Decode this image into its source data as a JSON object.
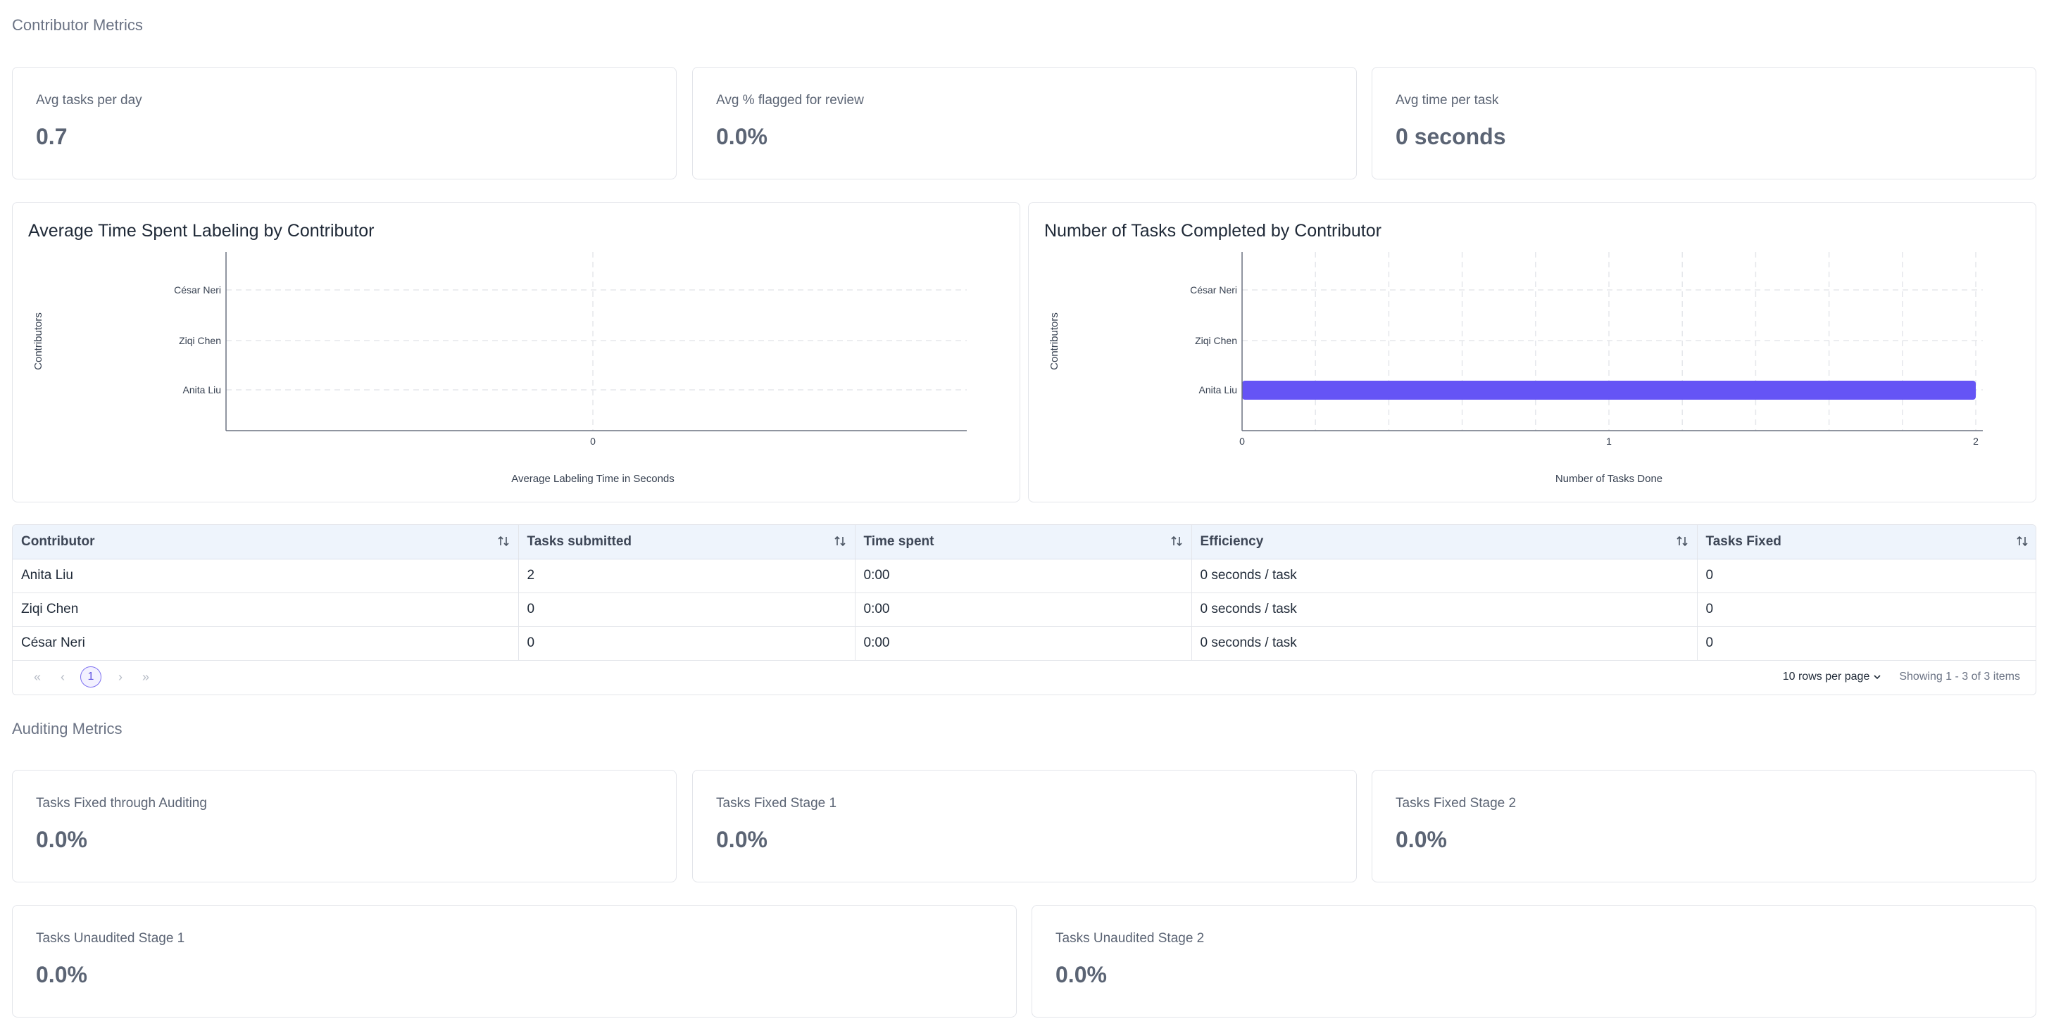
{
  "contributor_section": {
    "title": "Contributor Metrics",
    "stats": [
      {
        "label": "Avg tasks per day",
        "value": "0.7"
      },
      {
        "label": "Avg % flagged for review",
        "value": "0.0%"
      },
      {
        "label": "Avg time per task",
        "value": "0 seconds"
      }
    ]
  },
  "chart_data": [
    {
      "type": "bar",
      "orientation": "horizontal",
      "title": "Average Time Spent Labeling by Contributor",
      "categories": [
        "César Neri",
        "Ziqi Chen",
        "Anita Liu"
      ],
      "values": [
        0,
        0,
        0
      ],
      "xlabel": "Average Labeling Time in Seconds",
      "ylabel": "Contributors",
      "x_ticks": [
        "0"
      ],
      "grid": true,
      "color": "#6554f5"
    },
    {
      "type": "bar",
      "orientation": "horizontal",
      "title": "Number of Tasks Completed by Contributor",
      "categories": [
        "César Neri",
        "Ziqi Chen",
        "Anita Liu"
      ],
      "values": [
        0,
        0,
        2
      ],
      "xlabel": "Number of Tasks Done",
      "ylabel": "Contributors",
      "xlim": [
        0,
        2
      ],
      "x_ticks": [
        "0",
        "1",
        "2"
      ],
      "grid": true,
      "color": "#6554f5"
    }
  ],
  "table": {
    "columns": [
      "Contributor",
      "Tasks submitted",
      "Time spent",
      "Efficiency",
      "Tasks Fixed"
    ],
    "rows": [
      [
        "Anita Liu",
        "2",
        "0:00",
        "0 seconds / task",
        "0"
      ],
      [
        "Ziqi Chen",
        "0",
        "0:00",
        "0 seconds / task",
        "0"
      ],
      [
        "César Neri",
        "0",
        "0:00",
        "0 seconds / task",
        "0"
      ]
    ],
    "pagination": {
      "current_page": "1",
      "rows_per_page": "10 rows per page",
      "showing": "Showing 1 - 3 of 3 items"
    }
  },
  "auditing_section": {
    "title": "Auditing Metrics",
    "stats": [
      {
        "label": "Tasks Fixed through Auditing",
        "value": "0.0%"
      },
      {
        "label": "Tasks Fixed Stage 1",
        "value": "0.0%"
      },
      {
        "label": "Tasks Fixed Stage 2",
        "value": "0.0%"
      },
      {
        "label": "Tasks Unaudited Stage 1",
        "value": "0.0%"
      },
      {
        "label": "Tasks Unaudited Stage 2",
        "value": "0.0%"
      }
    ]
  }
}
